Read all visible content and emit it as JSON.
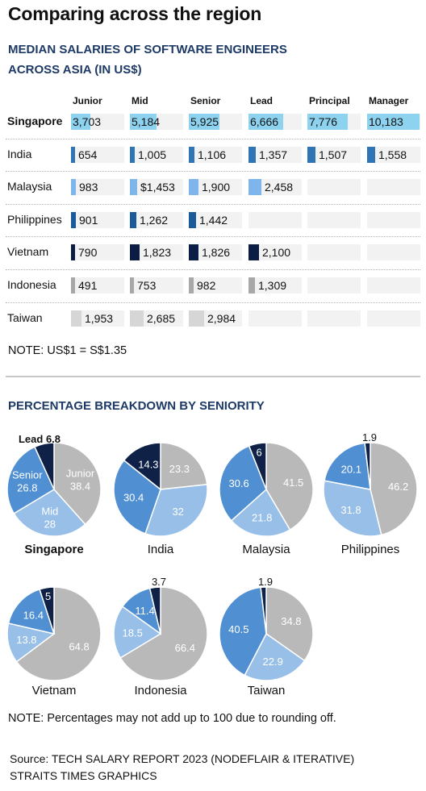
{
  "title": "Comparing across the region",
  "table_subtitle": [
    "MEDIAN SALARIES OF SOFTWARE ENGINEERS",
    "ACROSS ASIA (IN US$)"
  ],
  "pie_subtitle": "PERCENTAGE BREAKDOWN BY SENIORITY",
  "note1": "NOTE: US$1 = S$1.35",
  "note2": "NOTE: Percentages may not add up to 100 due to rounding off.",
  "source": [
    "Source: TECH SALARY REPORT 2023 (NODEFLAIR & ITERATIVE)",
    "STRAITS TIMES GRAPHICS"
  ],
  "colors": {
    "Singapore": "#8dd3f0",
    "India": "#2f74b5",
    "Malaysia": "#7eb6ec",
    "Philippines": "#1a5a9a",
    "Vietnam": "#0b1d45",
    "Indonesia": "#a8a8a8",
    "Taiwan": "#d6d6d6",
    "Junior": "#b9b9b9",
    "Mid": "#97bfe8",
    "Senior": "#4f8fd2",
    "Lead": "#0f2147"
  },
  "chart_data": [
    {
      "type": "table",
      "title": "MEDIAN SALARIES OF SOFTWARE ENGINEERS ACROSS ASIA (IN US$)",
      "columns": [
        "Junior",
        "Mid",
        "Senior",
        "Lead",
        "Principal",
        "Manager"
      ],
      "rows": [
        {
          "country": "Singapore",
          "values": [
            "3,703",
            "5,184",
            "5,925",
            "6,666",
            "7,776",
            "10,183"
          ]
        },
        {
          "country": "India",
          "values": [
            "654",
            "1,005",
            "1,106",
            "1,357",
            "1,507",
            "1,558"
          ]
        },
        {
          "country": "Malaysia",
          "values": [
            "983",
            "$1,453",
            "1,900",
            "2,458",
            null,
            null
          ]
        },
        {
          "country": "Philippines",
          "values": [
            "901",
            "1,262",
            "1,442",
            null,
            null,
            null
          ]
        },
        {
          "country": "Vietnam",
          "values": [
            "790",
            "1,823",
            "1,826",
            "2,100",
            null,
            null
          ]
        },
        {
          "country": "Indonesia",
          "values": [
            "491",
            "753",
            "982",
            "1,309",
            null,
            null
          ]
        },
        {
          "country": "Taiwan",
          "values": [
            "1,953",
            "2,685",
            "2,984",
            null,
            null,
            null
          ]
        }
      ],
      "max": 11000
    },
    {
      "type": "pie",
      "title": "PERCENTAGE BREAKDOWN BY SENIORITY",
      "categories": [
        "Junior",
        "Mid",
        "Senior",
        "Lead"
      ],
      "pies": [
        {
          "name": "Singapore",
          "values": [
            38.4,
            28,
            26.8,
            6.8
          ],
          "labels": [
            "Junior\n38.4",
            "Mid\n28",
            "Senior\n26.8",
            "Lead 6.8"
          ]
        },
        {
          "name": "India",
          "values": [
            23.3,
            32,
            30.4,
            14.3
          ],
          "labels": [
            "23.3",
            "32",
            "30.4",
            "14.3"
          ]
        },
        {
          "name": "Malaysia",
          "values": [
            41.5,
            21.8,
            30.6,
            6
          ],
          "labels": [
            "41.5",
            "21.8",
            "30.6",
            "6"
          ]
        },
        {
          "name": "Philippines",
          "values": [
            46.2,
            31.8,
            20.1,
            1.9
          ],
          "labels": [
            "46.2",
            "31.8",
            "20.1",
            "1.9"
          ]
        },
        {
          "name": "Vietnam",
          "values": [
            64.8,
            13.8,
            16.4,
            5
          ],
          "labels": [
            "64.8",
            "13.8",
            "16.4",
            "5"
          ]
        },
        {
          "name": "Indonesia",
          "values": [
            66.4,
            18.5,
            11.4,
            3.7
          ],
          "labels": [
            "66.4",
            "18.5",
            "11.4",
            "3.7"
          ]
        },
        {
          "name": "Taiwan",
          "values": [
            34.8,
            22.9,
            40.5,
            1.9
          ],
          "labels": [
            "34.8",
            "22.9",
            "40.5",
            "1.9"
          ]
        }
      ]
    }
  ]
}
